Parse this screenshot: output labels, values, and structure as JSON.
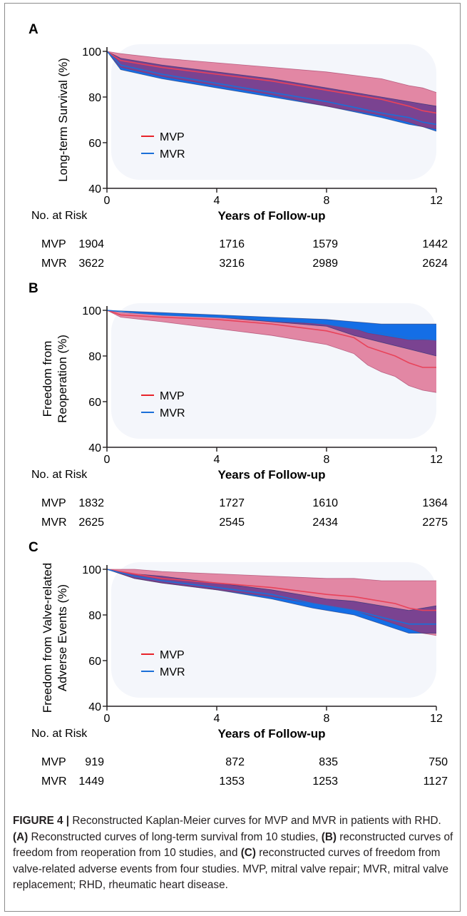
{
  "panels": [
    {
      "letter": "A",
      "ylabel": [
        "Long-term Survival (%)"
      ],
      "xlabel": "Years of Follow-up",
      "risk_label": "No. at Risk",
      "risk": [
        {
          "name": "MVP",
          "counts": [
            "1904",
            "1716",
            "1579",
            "1442"
          ]
        },
        {
          "name": "MVR",
          "counts": [
            "3622",
            "3216",
            "2989",
            "2624"
          ]
        }
      ]
    },
    {
      "letter": "B",
      "ylabel": [
        "Freedom from",
        "Reoperation (%)"
      ],
      "xlabel": "Years of Follow-up",
      "risk_label": "No. at Risk",
      "risk": [
        {
          "name": "MVP",
          "counts": [
            "1832",
            "1727",
            "1610",
            "1364"
          ]
        },
        {
          "name": "MVR",
          "counts": [
            "2625",
            "2545",
            "2434",
            "2275"
          ]
        }
      ]
    },
    {
      "letter": "C",
      "ylabel": [
        "Freedom from Valve-related",
        "Adverse Events (%)"
      ],
      "xlabel": "Years of Follow-up",
      "risk_label": "No. at Risk",
      "risk": [
        {
          "name": "MVP",
          "counts": [
            "919",
            "872",
            "835",
            "750"
          ]
        },
        {
          "name": "MVR",
          "counts": [
            "1449",
            "1353",
            "1253",
            "1127"
          ]
        }
      ]
    }
  ],
  "chart_data": [
    {
      "type": "line",
      "ylabel": "Long-term Survival (%)",
      "xlabel": "Years of Follow-up",
      "xlim": [
        0,
        12
      ],
      "ylim": [
        40,
        100
      ],
      "xticks": [
        0,
        4,
        8,
        12
      ],
      "yticks": [
        40,
        60,
        80,
        100
      ],
      "legend": "center-left",
      "series": [
        {
          "name": "MVP",
          "color": "#e8232a",
          "x": [
            0,
            0.5,
            2,
            4,
            6,
            8,
            10,
            11,
            11.5,
            12
          ],
          "y": [
            100,
            96,
            93,
            90,
            87,
            83,
            79,
            76,
            74,
            73
          ],
          "lower": [
            100,
            93,
            89,
            85,
            81,
            76,
            72,
            69,
            67,
            66
          ],
          "upper": [
            100,
            99,
            97,
            95,
            93,
            91,
            88,
            85,
            84,
            82
          ]
        },
        {
          "name": "MVR",
          "color": "#1b6fd8",
          "x": [
            0,
            0.5,
            2,
            4,
            6,
            8,
            10,
            11,
            11.5,
            12
          ],
          "y": [
            100,
            94,
            90,
            86,
            82,
            78,
            73,
            71,
            69,
            68
          ],
          "lower": [
            100,
            92,
            88,
            84,
            80,
            76,
            71,
            68,
            67,
            65
          ],
          "upper": [
            100,
            97,
            94,
            91,
            88,
            84,
            80,
            78,
            77,
            76
          ]
        }
      ]
    },
    {
      "type": "line",
      "ylabel": "Freedom from Reoperation (%)",
      "xlabel": "Years of Follow-up",
      "xlim": [
        0,
        12
      ],
      "ylim": [
        40,
        100
      ],
      "xticks": [
        0,
        4,
        8,
        12
      ],
      "yticks": [
        40,
        60,
        80,
        100
      ],
      "legend": "center-left",
      "series": [
        {
          "name": "MVP",
          "color": "#e8232a",
          "x": [
            0,
            0.5,
            2,
            4,
            6,
            8,
            9,
            9.5,
            10,
            10.5,
            11,
            11.5,
            12
          ],
          "y": [
            100,
            98,
            97,
            96,
            94,
            91,
            88,
            84,
            82,
            80,
            77,
            75,
            75
          ],
          "lower": [
            100,
            97,
            95,
            92,
            89,
            85,
            81,
            76,
            73,
            71,
            67,
            65,
            64
          ],
          "upper": [
            100,
            99,
            98,
            97,
            95,
            94,
            92,
            90,
            89,
            88,
            87,
            87,
            87
          ]
        },
        {
          "name": "MVR",
          "color": "#1b6fd8",
          "x": [
            0,
            2,
            4,
            6,
            8,
            9,
            10,
            11,
            12
          ],
          "y": [
            100,
            98,
            97,
            96,
            94,
            92,
            90,
            88,
            87
          ],
          "lower": [
            100,
            98,
            97,
            95,
            93,
            89,
            86,
            83,
            80
          ],
          "upper": [
            100,
            99,
            98,
            97,
            96,
            95,
            94,
            94,
            94
          ]
        }
      ]
    },
    {
      "type": "line",
      "ylabel": "Freedom from Valve-related Adverse Events (%)",
      "xlabel": "Years of Follow-up",
      "xlim": [
        0,
        12
      ],
      "ylim": [
        40,
        100
      ],
      "xticks": [
        0,
        4,
        8,
        12
      ],
      "yticks": [
        40,
        60,
        80,
        100
      ],
      "legend": "center-left",
      "series": [
        {
          "name": "MVP",
          "color": "#e8232a",
          "x": [
            0,
            1,
            2,
            4,
            6,
            8,
            9,
            10,
            10.5,
            11,
            11.5,
            12
          ],
          "y": [
            100,
            98,
            96,
            94,
            92,
            89,
            88,
            86,
            85,
            83,
            82,
            82
          ],
          "lower": [
            100,
            96,
            94,
            91,
            88,
            84,
            82,
            78,
            76,
            74,
            72,
            71
          ],
          "upper": [
            100,
            100,
            99,
            98,
            97,
            96,
            96,
            95,
            95,
            95,
            95,
            95
          ]
        },
        {
          "name": "MVR",
          "color": "#1b6fd8",
          "x": [
            0,
            1,
            2,
            4,
            6,
            7.5,
            8,
            9,
            10,
            11,
            12
          ],
          "y": [
            100,
            97,
            95,
            92,
            89,
            85,
            84,
            82,
            79,
            76,
            76
          ],
          "lower": [
            100,
            96,
            94,
            91,
            87,
            83,
            82,
            80,
            76,
            72,
            72
          ],
          "upper": [
            100,
            98,
            97,
            94,
            91,
            88,
            87,
            86,
            84,
            82,
            84
          ]
        }
      ]
    }
  ],
  "caption": {
    "label": "FIGURE 4 |",
    "intro": " Reconstructed Kaplan-Meier curves for MVP and MVR in patients with RHD. ",
    "a_tag": "(A)",
    "a_text": " Reconstructed curves of long-term survival from 10 studies, ",
    "b_tag": "(B)",
    "b_text": " reconstructed curves of freedom from reoperation from 10 studies, and ",
    "c_tag": "(C)",
    "c_text": " reconstructed curves of freedom from valve-related adverse events from four studies. MVP, mitral valve repair; MVR, mitral valve replacement; RHD, rheumatic heart disease."
  }
}
